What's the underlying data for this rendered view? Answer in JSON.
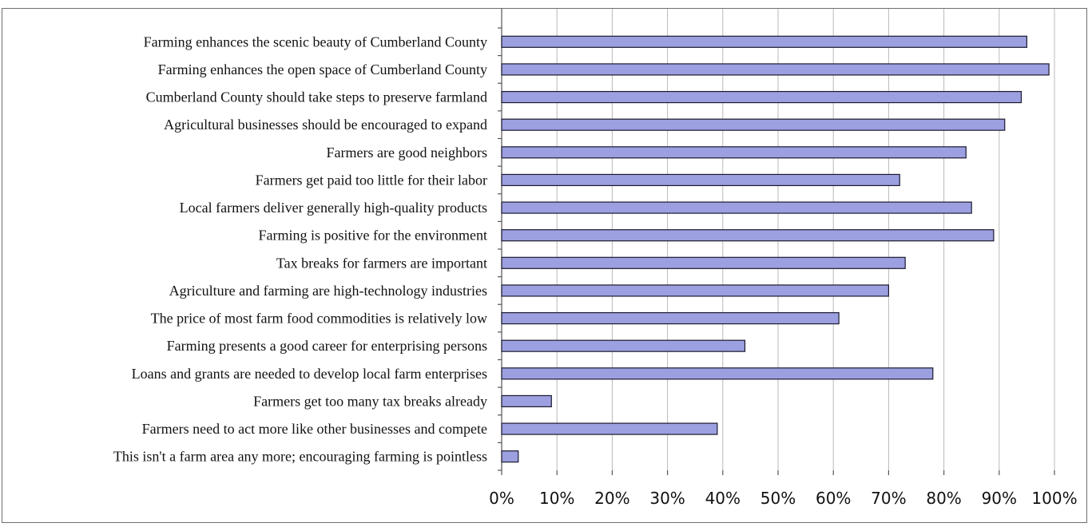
{
  "chart_data": {
    "type": "bar",
    "orientation": "horizontal",
    "categories": [
      "Farming enhances the scenic beauty of Cumberland County",
      "Farming enhances the open space of Cumberland County",
      "Cumberland County should take steps to preserve farmland",
      "Agricultural businesses should be encouraged to expand",
      "Farmers are good neighbors",
      "Farmers get paid too little for their labor",
      "Local farmers deliver generally high-quality products",
      "Farming is positive for the environment",
      "Tax breaks for farmers are important",
      "Agriculture and farming are high-technology industries",
      "The price of most farm food commodities is relatively low",
      "Farming presents a good career for enterprising persons",
      "Loans and grants are needed to develop local farm enterprises",
      "Farmers get too many tax breaks already",
      "Farmers need to act more like other businesses and compete",
      "This isn't a farm area any more; encouraging farming is pointless"
    ],
    "values": [
      95,
      99,
      94,
      91,
      84,
      72,
      85,
      89,
      73,
      70,
      61,
      44,
      78,
      9,
      39,
      3
    ],
    "xlim": [
      0,
      100
    ],
    "x_ticks": [
      0,
      10,
      20,
      30,
      40,
      50,
      60,
      70,
      80,
      90,
      100
    ],
    "x_tick_labels": [
      "0%",
      "10%",
      "20%",
      "30%",
      "40%",
      "50%",
      "60%",
      "70%",
      "80%",
      "90%",
      "100%"
    ],
    "grid": "vertical",
    "legend": "none",
    "title": "",
    "xlabel": "",
    "ylabel": "",
    "colors": {
      "bar_fill": "#9c9fe0",
      "bar_edge": "#1b1b2e",
      "grid": "#b9b9b9",
      "frame": "#6f6f6f"
    }
  }
}
